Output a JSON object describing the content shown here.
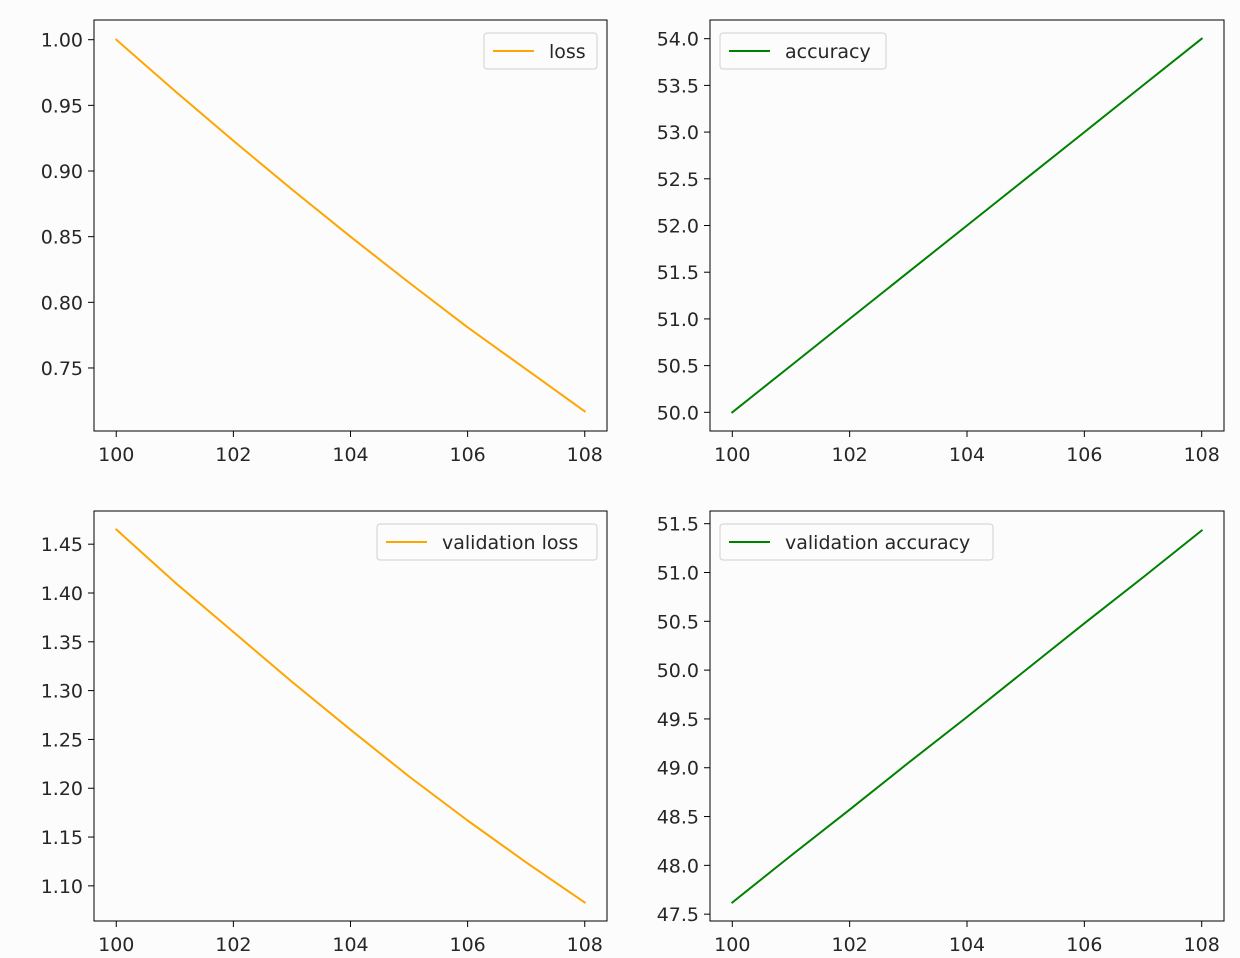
{
  "chart_data": [
    {
      "type": "line",
      "title": "",
      "xlabel": "",
      "ylabel": "",
      "x": [
        100,
        101,
        102,
        103,
        104,
        105,
        106,
        107,
        108
      ],
      "xlim": [
        99.62,
        108.38
      ],
      "ylim": [
        0.702,
        1.015
      ],
      "xticks": [
        100,
        102,
        104,
        106,
        108
      ],
      "yticks": [
        0.75,
        0.8,
        0.85,
        0.9,
        0.95,
        1.0
      ],
      "ytick_labels": [
        "0.75",
        "0.80",
        "0.85",
        "0.90",
        "0.95",
        "1.00"
      ],
      "series": [
        {
          "name": "loss",
          "color": "#ffa500",
          "values": [
            1.0,
            0.961,
            0.923,
            0.886,
            0.85,
            0.815,
            0.781,
            0.749,
            0.717
          ]
        }
      ],
      "grid": false,
      "legend": "upper right"
    },
    {
      "type": "line",
      "title": "",
      "xlabel": "",
      "ylabel": "",
      "x": [
        100,
        101,
        102,
        103,
        104,
        105,
        106,
        107,
        108
      ],
      "xlim": [
        99.62,
        108.38
      ],
      "ylim": [
        49.8,
        54.2
      ],
      "xticks": [
        100,
        102,
        104,
        106,
        108
      ],
      "yticks": [
        50.0,
        50.5,
        51.0,
        51.5,
        52.0,
        52.5,
        53.0,
        53.5,
        54.0
      ],
      "ytick_labels": [
        "50.0",
        "50.5",
        "51.0",
        "51.5",
        "52.0",
        "52.5",
        "53.0",
        "53.5",
        "54.0"
      ],
      "series": [
        {
          "name": "accuracy",
          "color": "#008000",
          "values": [
            50.0,
            50.5,
            51.0,
            51.5,
            52.0,
            52.5,
            53.0,
            53.5,
            54.0
          ]
        }
      ],
      "grid": false,
      "legend": "upper left"
    },
    {
      "type": "line",
      "title": "",
      "xlabel": "",
      "ylabel": "",
      "x": [
        100,
        101,
        102,
        103,
        104,
        105,
        106,
        107,
        108
      ],
      "xlim": [
        99.62,
        108.38
      ],
      "ylim": [
        1.064,
        1.484
      ],
      "xticks": [
        100,
        102,
        104,
        106,
        108
      ],
      "yticks": [
        1.1,
        1.15,
        1.2,
        1.25,
        1.3,
        1.35,
        1.4,
        1.45
      ],
      "ytick_labels": [
        "1.10",
        "1.15",
        "1.20",
        "1.25",
        "1.30",
        "1.35",
        "1.40",
        "1.45"
      ],
      "series": [
        {
          "name": "validation loss",
          "color": "#ffa500",
          "values": [
            1.465,
            1.411,
            1.36,
            1.309,
            1.26,
            1.212,
            1.167,
            1.124,
            1.083
          ]
        }
      ],
      "grid": false,
      "legend": "upper right"
    },
    {
      "type": "line",
      "title": "",
      "xlabel": "",
      "ylabel": "",
      "x": [
        100,
        101,
        102,
        103,
        104,
        105,
        106,
        107,
        108
      ],
      "xlim": [
        99.62,
        108.38
      ],
      "ylim": [
        47.43,
        51.63
      ],
      "xticks": [
        100,
        102,
        104,
        106,
        108
      ],
      "yticks": [
        47.5,
        48.0,
        48.5,
        49.0,
        49.5,
        50.0,
        50.5,
        51.0,
        51.5
      ],
      "ytick_labels": [
        "47.5",
        "48.0",
        "48.5",
        "49.0",
        "49.5",
        "50.0",
        "50.5",
        "51.0",
        "51.5"
      ],
      "series": [
        {
          "name": "validation accuracy",
          "color": "#008000",
          "values": [
            47.62,
            48.1,
            48.57,
            49.05,
            49.52,
            50.0,
            50.48,
            50.95,
            51.43
          ]
        }
      ],
      "grid": false,
      "legend": "upper left"
    }
  ]
}
